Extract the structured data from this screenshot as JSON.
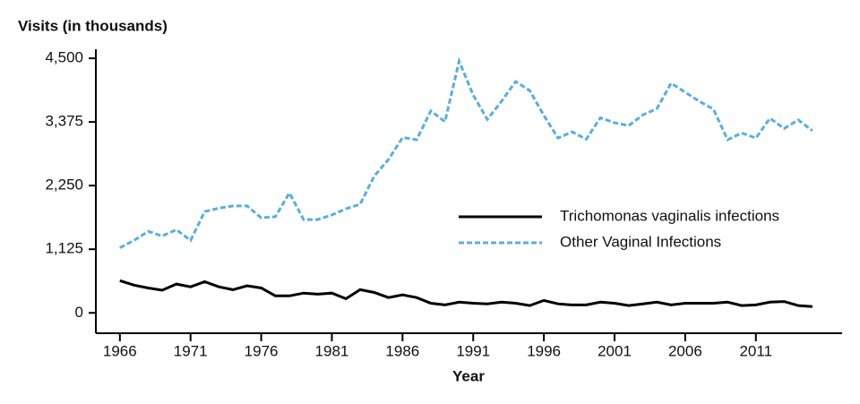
{
  "chart_data": {
    "type": "line",
    "y_axis_title": "Visits (in thousands)",
    "x_axis_title": "Year",
    "x": [
      1966,
      1967,
      1968,
      1969,
      1970,
      1971,
      1972,
      1973,
      1974,
      1975,
      1976,
      1977,
      1978,
      1979,
      1980,
      1981,
      1982,
      1983,
      1984,
      1985,
      1986,
      1987,
      1988,
      1989,
      1990,
      1991,
      1992,
      1993,
      1994,
      1995,
      1996,
      1997,
      1998,
      1999,
      2000,
      2001,
      2002,
      2003,
      2004,
      2005,
      2006,
      2007,
      2008,
      2009,
      2010,
      2011,
      2012,
      2013,
      2014,
      2015
    ],
    "series": [
      {
        "name": "Trichomonas vaginalis infections",
        "color": "#000000",
        "dash": "solid",
        "values": [
          570,
          490,
          440,
          400,
          510,
          460,
          550,
          460,
          410,
          480,
          440,
          300,
          300,
          350,
          330,
          350,
          250,
          410,
          360,
          270,
          320,
          270,
          170,
          140,
          190,
          170,
          160,
          190,
          170,
          130,
          220,
          160,
          140,
          140,
          190,
          170,
          130,
          160,
          190,
          140,
          170,
          170,
          170,
          190,
          130,
          140,
          190,
          200,
          130,
          110
        ]
      },
      {
        "name": "Other Vaginal Infections",
        "color": "#5aaee0",
        "dash": "dashed",
        "values": [
          1150,
          1280,
          1440,
          1360,
          1470,
          1280,
          1790,
          1850,
          1890,
          1890,
          1680,
          1700,
          2120,
          1650,
          1650,
          1730,
          1840,
          1920,
          2420,
          2710,
          3100,
          3060,
          3570,
          3380,
          4450,
          3850,
          3420,
          3740,
          4090,
          3930,
          3490,
          3090,
          3200,
          3070,
          3450,
          3360,
          3310,
          3500,
          3610,
          4060,
          3900,
          3740,
          3600,
          3060,
          3180,
          3090,
          3440,
          3260,
          3410,
          3220
        ]
      }
    ],
    "xlim": [
      1964.3,
      2017.1
    ],
    "xticks": [
      1966,
      1971,
      1976,
      1981,
      1986,
      1991,
      1996,
      2001,
      2006,
      2011
    ],
    "ylim": [
      -360,
      4660
    ],
    "yticks": [
      0,
      {
        "value": 1125,
        "label": "1,125"
      },
      {
        "value": 2250,
        "label": "2,250"
      },
      {
        "value": 3375,
        "label": "3,375"
      },
      {
        "value": 4500,
        "label": "4,500"
      }
    ],
    "grid": false
  }
}
